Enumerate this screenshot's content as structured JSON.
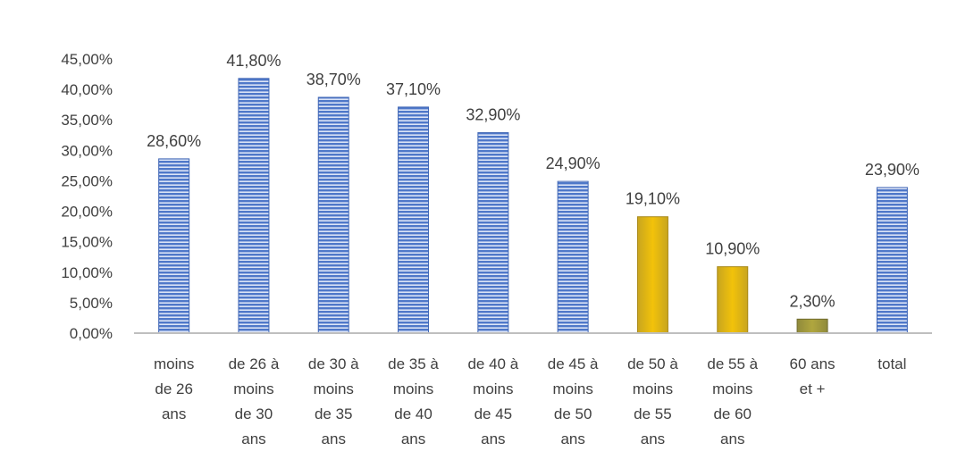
{
  "chart_data": {
    "type": "bar",
    "title": "",
    "xlabel": "",
    "ylabel": "",
    "ylim": [
      0,
      45
    ],
    "yticks": [
      "0,00%",
      "5,00%",
      "10,00%",
      "15,00%",
      "20,00%",
      "25,00%",
      "30,00%",
      "35,00%",
      "40,00%",
      "45,00%"
    ],
    "grid": false,
    "legend": "none",
    "categories": [
      [
        "moins",
        "de 26",
        "ans"
      ],
      [
        "de 26 à",
        "moins",
        "de 30",
        "ans"
      ],
      [
        "de 30 à",
        "moins",
        "de 35",
        "ans"
      ],
      [
        "de 35 à",
        "moins",
        "de 40",
        "ans"
      ],
      [
        "de 40 à",
        "moins",
        "de 45",
        "ans"
      ],
      [
        "de 45 à",
        "moins",
        "de 50",
        "ans"
      ],
      [
        "de 50 à",
        "moins",
        "de 55",
        "ans"
      ],
      [
        "de 55 à",
        "moins",
        "de 60",
        "ans"
      ],
      [
        "60 ans",
        "et +"
      ],
      [
        "total"
      ]
    ],
    "values": [
      28.6,
      41.8,
      38.7,
      37.1,
      32.9,
      24.9,
      19.1,
      10.9,
      2.3,
      23.9
    ],
    "labels": [
      "28,60%",
      "41,80%",
      "38,70%",
      "37,10%",
      "32,90%",
      "24,90%",
      "19,10%",
      "10,90%",
      "2,30%",
      "23,90%"
    ],
    "bar_colors": [
      "#4472c4",
      "#4472c4",
      "#4472c4",
      "#4472c4",
      "#4472c4",
      "#4472c4",
      "#ffc000",
      "#ffc000",
      "#a5a03c",
      "#4472c4"
    ]
  }
}
